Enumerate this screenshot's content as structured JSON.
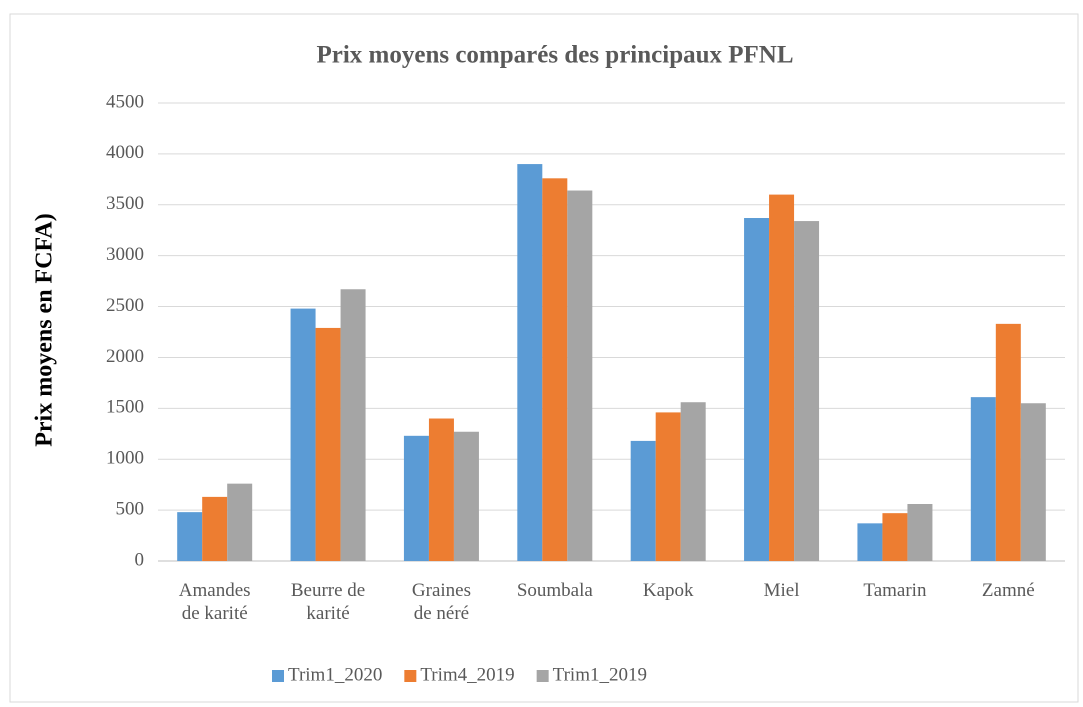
{
  "chart_data": {
    "type": "bar",
    "title": "Prix moyens comparés des principaux PFNL",
    "y_label": "Prix moyens en FCFA)",
    "categories": [
      "Amandes de karité",
      "Beurre de karité",
      "Graines de néré",
      "Soumbala",
      "Kapok",
      "Miel",
      "Tamarin",
      "Zamné"
    ],
    "series": [
      {
        "name": "Trim1_2020",
        "color": "#5b9bd5",
        "values": [
          480,
          2480,
          1230,
          3900,
          1180,
          3370,
          370,
          1610
        ]
      },
      {
        "name": "Trim4_2019",
        "color": "#ed7d31",
        "values": [
          630,
          2290,
          1400,
          3760,
          1460,
          3600,
          470,
          2330
        ]
      },
      {
        "name": "Trim1_2019",
        "color": "#a5a5a5",
        "values": [
          760,
          2670,
          1270,
          3640,
          1560,
          3340,
          560,
          1550
        ]
      }
    ],
    "ylim": [
      0,
      4500
    ],
    "yticks": [
      0,
      500,
      1000,
      1500,
      2000,
      2500,
      3000,
      3500,
      4000,
      4500
    ],
    "grid": true,
    "legend": "bottom"
  }
}
